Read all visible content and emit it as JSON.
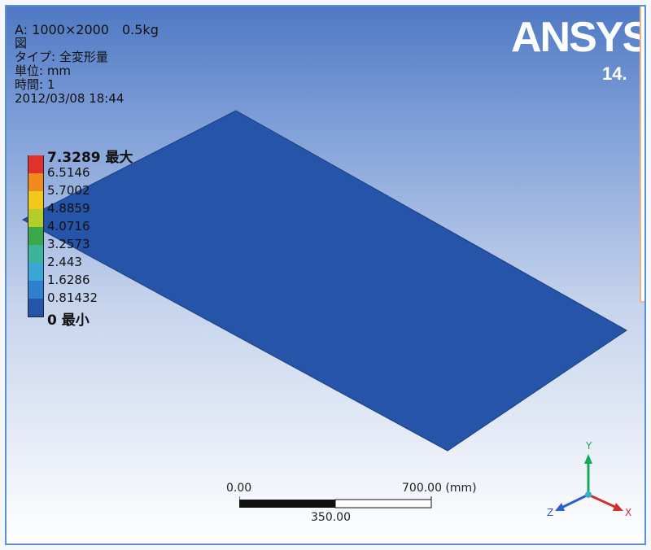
{
  "info": {
    "title": "A: 1000×2000　0.5kg",
    "line2": "図",
    "line3": "タイプ: 全変形量",
    "line4": "単位: mm",
    "line5": "時間: 1",
    "line6": "2012/03/08 18:44"
  },
  "legend": {
    "max_label": "7.3289 最大",
    "min_label": "0 最小",
    "values": [
      "6.5146",
      "5.7002",
      "4.8859",
      "4.0716",
      "3.2573",
      "2.443",
      "1.6286",
      "0.81432"
    ],
    "colors": [
      "#e0322a",
      "#f08a1c",
      "#f2c81a",
      "#b6cc2a",
      "#3ba64a",
      "#3bb59a",
      "#3aa6d6",
      "#2f7fcc",
      "#2554a8"
    ]
  },
  "brand": {
    "name_part1": "ANSYS",
    "version": "14."
  },
  "scale": {
    "left": "0.00",
    "right": "700.00 (mm)",
    "middle": "350.00"
  },
  "axes": {
    "x": "X",
    "y": "Y",
    "z": "Z"
  }
}
